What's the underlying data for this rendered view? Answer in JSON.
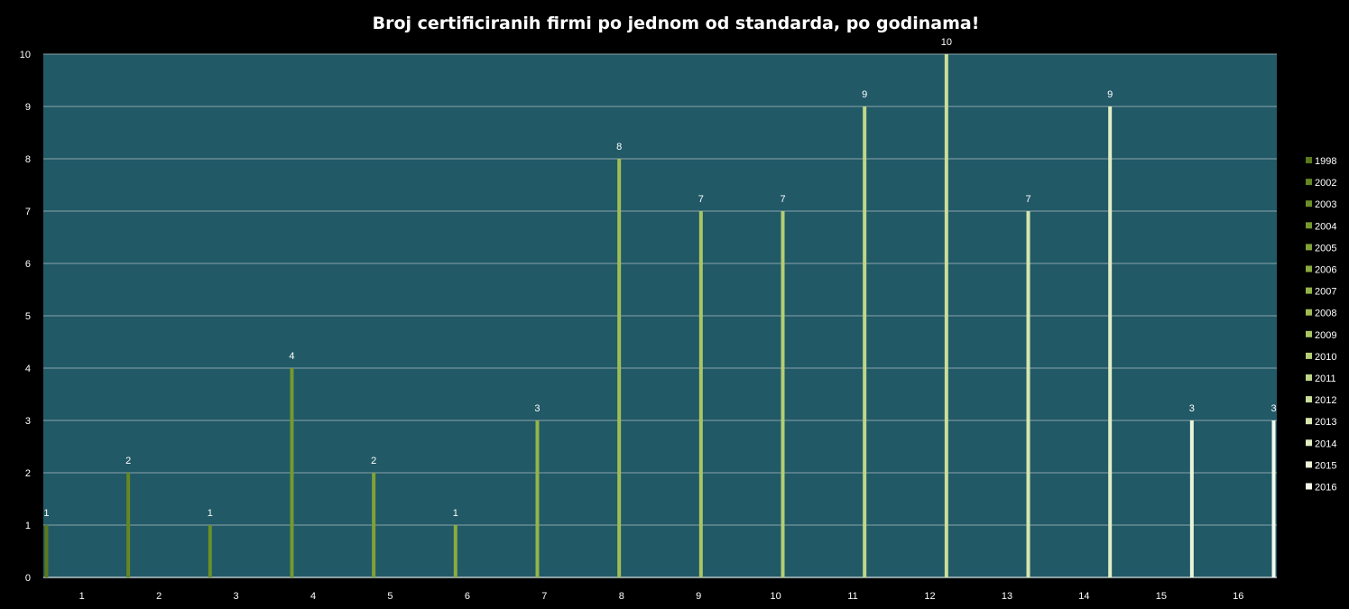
{
  "chart_data": {
    "type": "bar",
    "title": "Broj certificiranih firmi po jednom od standarda, po godinama!",
    "xlabel": "",
    "ylabel": "",
    "categories": [
      "1",
      "2",
      "3",
      "4",
      "5",
      "6",
      "7",
      "8",
      "9",
      "10",
      "11",
      "12",
      "13",
      "14",
      "15",
      "16"
    ],
    "ylim": [
      0,
      10
    ],
    "yticks": [
      "0",
      "1",
      "2",
      "3",
      "4",
      "5",
      "6",
      "7",
      "8",
      "9",
      "10"
    ],
    "grid": true,
    "legend_position": "right",
    "series": [
      {
        "name": "1998",
        "values": [
          1,
          null,
          null,
          null,
          null,
          null,
          null,
          null,
          null,
          null,
          null,
          null,
          null,
          null,
          null,
          null
        ],
        "color": "#5c7a1c"
      },
      {
        "name": "2002",
        "values": [
          null,
          2,
          null,
          null,
          null,
          null,
          null,
          null,
          null,
          null,
          null,
          null,
          null,
          null,
          null,
          null
        ],
        "color": "#658622"
      },
      {
        "name": "2003",
        "values": [
          null,
          null,
          1,
          null,
          null,
          null,
          null,
          null,
          null,
          null,
          null,
          null,
          null,
          null,
          null,
          null
        ],
        "color": "#6c8f27"
      },
      {
        "name": "2004",
        "values": [
          null,
          null,
          null,
          4,
          null,
          null,
          null,
          null,
          null,
          null,
          null,
          null,
          null,
          null,
          null,
          null
        ],
        "color": "#76992e"
      },
      {
        "name": "2005",
        "values": [
          null,
          null,
          null,
          null,
          2,
          null,
          null,
          null,
          null,
          null,
          null,
          null,
          null,
          null,
          null,
          null
        ],
        "color": "#80a236"
      },
      {
        "name": "2006",
        "values": [
          null,
          null,
          null,
          null,
          null,
          1,
          null,
          null,
          null,
          null,
          null,
          null,
          null,
          null,
          null,
          null
        ],
        "color": "#8aab3e"
      },
      {
        "name": "2007",
        "values": [
          null,
          null,
          null,
          null,
          null,
          null,
          3,
          null,
          null,
          null,
          null,
          null,
          null,
          null,
          null,
          null
        ],
        "color": "#95b448"
      },
      {
        "name": "2008",
        "values": [
          null,
          null,
          null,
          null,
          null,
          null,
          null,
          8,
          null,
          null,
          null,
          null,
          null,
          null,
          null,
          null
        ],
        "color": "#a0bd55"
      },
      {
        "name": "2009",
        "values": [
          null,
          null,
          null,
          null,
          null,
          null,
          null,
          null,
          7,
          null,
          null,
          null,
          null,
          null,
          null,
          null
        ],
        "color": "#aac664"
      },
      {
        "name": "2010",
        "values": [
          null,
          null,
          null,
          null,
          null,
          null,
          null,
          null,
          null,
          7,
          null,
          null,
          null,
          null,
          null,
          null
        ],
        "color": "#b5ce75"
      },
      {
        "name": "2011",
        "values": [
          null,
          null,
          null,
          null,
          null,
          null,
          null,
          null,
          null,
          null,
          9,
          null,
          null,
          null,
          null,
          null
        ],
        "color": "#c0d687"
      },
      {
        "name": "2012",
        "values": [
          null,
          null,
          null,
          null,
          null,
          null,
          null,
          null,
          null,
          null,
          null,
          10,
          null,
          null,
          null,
          null
        ],
        "color": "#cbde9a"
      },
      {
        "name": "2013",
        "values": [
          null,
          null,
          null,
          null,
          null,
          null,
          null,
          null,
          null,
          null,
          null,
          null,
          7,
          null,
          null,
          null
        ],
        "color": "#d6e6ae"
      },
      {
        "name": "2014",
        "values": [
          null,
          null,
          null,
          null,
          null,
          null,
          null,
          null,
          null,
          null,
          null,
          null,
          null,
          9,
          null,
          null
        ],
        "color": "#e1edc3"
      },
      {
        "name": "2015",
        "values": [
          null,
          null,
          null,
          null,
          null,
          null,
          null,
          null,
          null,
          null,
          null,
          null,
          null,
          null,
          3,
          null
        ],
        "color": "#ebf4d8"
      },
      {
        "name": "2016",
        "values": [
          null,
          null,
          null,
          null,
          null,
          null,
          null,
          null,
          null,
          null,
          null,
          null,
          null,
          null,
          null,
          3
        ],
        "color": "#f4f9ec"
      }
    ]
  },
  "colors": {
    "background": "#000000",
    "plot_area": "#215967",
    "gridline": "#8aa3aa",
    "text": "#ffffff"
  }
}
